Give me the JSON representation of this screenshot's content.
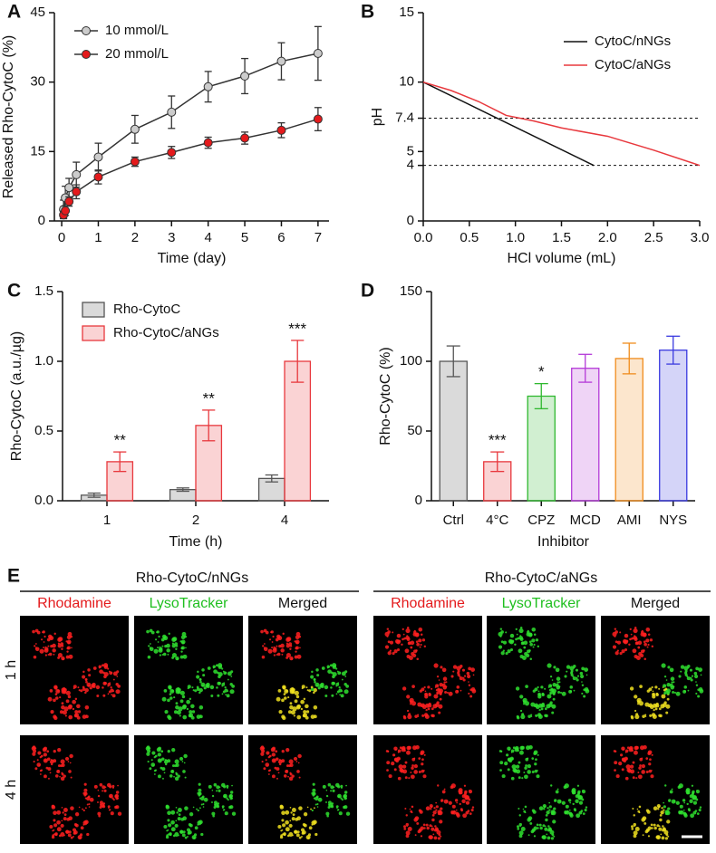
{
  "chart_data": [
    {
      "type": "line",
      "panel": "A",
      "ylabel": "Released Rho-CytoC (%)",
      "xlabel": "Time (day)",
      "xlim": [
        -0.2,
        7.3
      ],
      "xticks": [
        0,
        1,
        2,
        3,
        4,
        5,
        6,
        7
      ],
      "ylim": [
        0,
        45
      ],
      "yticks": [
        0,
        15,
        30,
        45
      ],
      "markers": true,
      "line_color": "#333",
      "legend": "upper left",
      "x": [
        0.05,
        0.1,
        0.2,
        0.4,
        1,
        2,
        3,
        4,
        5,
        6,
        7
      ],
      "series": [
        {
          "name": "10 mmol/L",
          "color": "#cccccc",
          "values": [
            2.5,
            5,
            7.2,
            10,
            13.8,
            19.8,
            23.5,
            29,
            31.3,
            34.5,
            36.2
          ],
          "errors": [
            2,
            2.5,
            2,
            2.7,
            3,
            3,
            3.5,
            3.3,
            3.8,
            4,
            5.8
          ]
        },
        {
          "name": "20 mmol/L",
          "color": "#e41a1c",
          "values": [
            1.3,
            2.2,
            4.2,
            6.3,
            9.5,
            12.8,
            14.8,
            16.9,
            17.9,
            19.6,
            22
          ],
          "errors": [
            0.8,
            1,
            1,
            1.5,
            1.5,
            1,
            1.3,
            1.2,
            1.3,
            1.6,
            2.5
          ]
        }
      ]
    },
    {
      "type": "line",
      "panel": "B",
      "ylabel": "pH",
      "xlabel": "HCl volume (mL)",
      "xlim": [
        0,
        3
      ],
      "xticks": [
        {
          "value": 0,
          "label": "0.0"
        },
        0.5,
        {
          "value": 1,
          "label": "1.0"
        },
        1.5,
        {
          "value": 2,
          "label": "2.0"
        },
        2.5,
        {
          "value": 3,
          "label": "3.0"
        }
      ],
      "ylim": [
        0,
        15
      ],
      "yticks": [
        0,
        4,
        5,
        7.4,
        10,
        15
      ],
      "reference_lines": [
        7.4,
        4
      ],
      "legend": "upper right",
      "series": [
        {
          "name": "CytoC/nNGs",
          "color": "#111111",
          "x": [
            0,
            1.85
          ],
          "values": [
            10,
            4
          ]
        },
        {
          "name": "CytoC/aNGs",
          "color": "#e8383d",
          "x": [
            0,
            0.3,
            0.6,
            0.9,
            1.2,
            1.5,
            2.0,
            2.5,
            3.0
          ],
          "values": [
            10,
            9.4,
            8.6,
            7.6,
            7.2,
            6.7,
            6.1,
            5.1,
            4.0
          ]
        }
      ]
    },
    {
      "type": "bar",
      "panel": "C",
      "ylabel": "Rho-CytoC (a.u./µg)",
      "xlabel": "Time (h)",
      "ylim": [
        0,
        1.5
      ],
      "yticks": [
        {
          "value": 0,
          "label": "0.0"
        },
        0.5,
        {
          "value": 1,
          "label": "1.0"
        },
        1.5
      ],
      "legend": "upper left",
      "categories": [
        "1",
        "2",
        "4"
      ],
      "series": [
        {
          "name": "Rho-CytoC",
          "color": "#555555",
          "values": [
            0.04,
            0.08,
            0.16
          ],
          "errors": [
            0.015,
            0.012,
            0.025
          ]
        },
        {
          "name": "Rho-CytoC/aNGs",
          "color": "#e8383d",
          "values": [
            0.28,
            0.54,
            1.0
          ],
          "errors": [
            0.07,
            0.11,
            0.15
          ],
          "annotations": [
            "**",
            "**",
            "***"
          ]
        }
      ]
    },
    {
      "type": "bar",
      "panel": "D",
      "ylabel": "Rho-CytoC (%)",
      "xlabel": "Inhibitor",
      "ylim": [
        0,
        150
      ],
      "yticks": [
        0,
        50,
        100,
        150
      ],
      "categories": [
        "Ctrl",
        "4°C",
        "CPZ",
        "MCD",
        "AMI",
        "NYS"
      ],
      "values": [
        100,
        28,
        75,
        95,
        102,
        108
      ],
      "errors": [
        11,
        7,
        9,
        10,
        11,
        10
      ],
      "colors": [
        "#555555",
        "#e8383d",
        "#2eb82e",
        "#b43ad8",
        "#f08c1c",
        "#3a3ae0"
      ],
      "annotations": [
        null,
        "***",
        "*",
        null,
        null,
        null
      ]
    }
  ],
  "panel_e": {
    "label": "E",
    "groups": [
      {
        "title": "Rho-CytoC/nNGs",
        "columns": [
          "Rhodamine",
          "LysoTracker",
          "Merged"
        ]
      },
      {
        "title": "Rho-CytoC/aNGs",
        "columns": [
          "Rhodamine",
          "LysoTracker",
          "Merged"
        ]
      }
    ],
    "rows": [
      "1 h",
      "4 h"
    ]
  }
}
